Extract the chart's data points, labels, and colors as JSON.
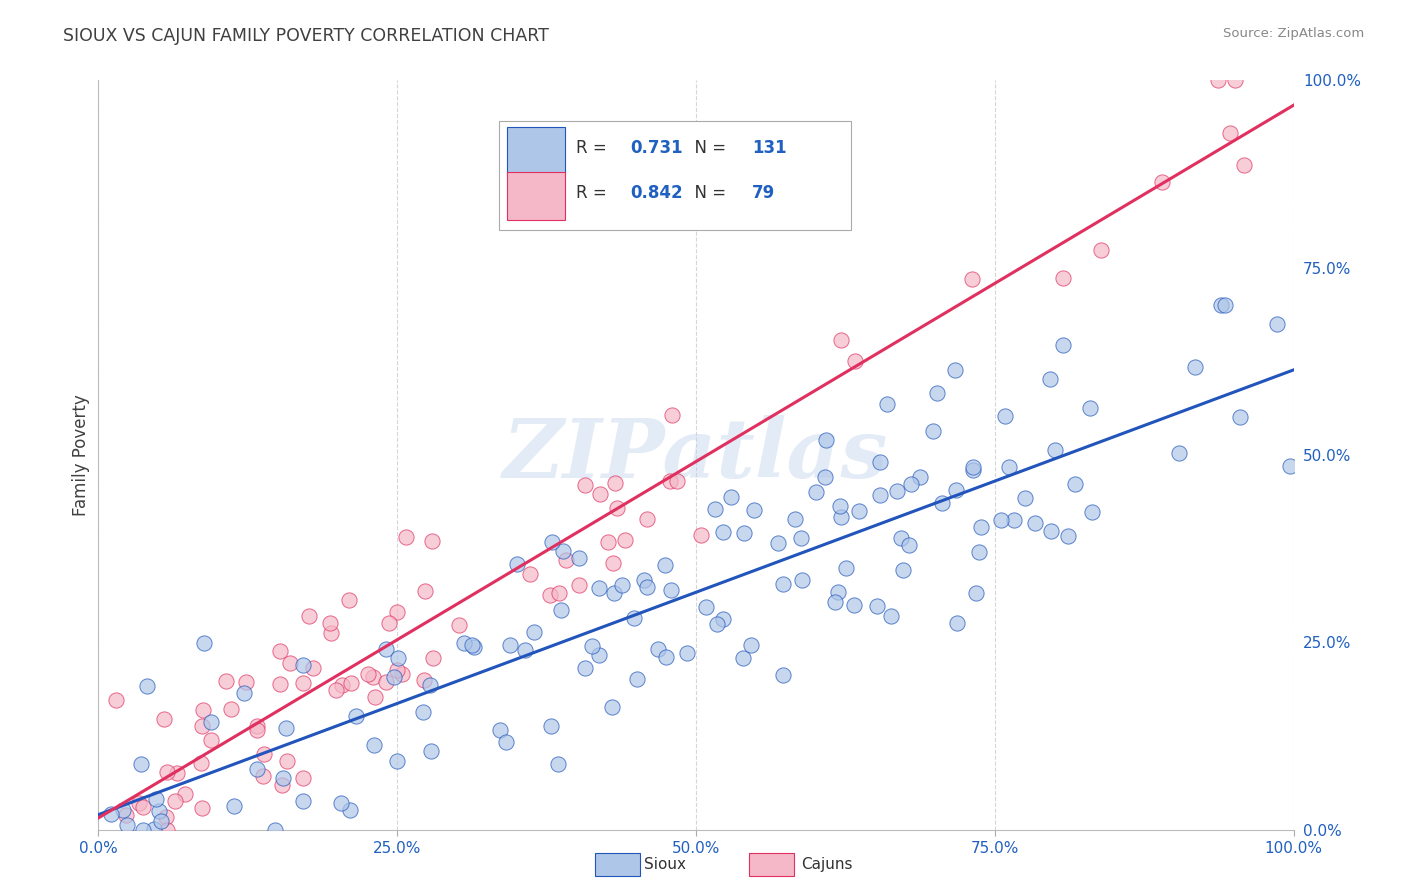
{
  "title": "SIOUX VS CAJUN FAMILY POVERTY CORRELATION CHART",
  "source": "Source: ZipAtlas.com",
  "ylabel": "Family Poverty",
  "sioux_R": 0.731,
  "sioux_N": 131,
  "cajun_R": 0.842,
  "cajun_N": 79,
  "sioux_color": "#aec6e8",
  "cajun_color": "#f5b8c8",
  "sioux_line_color": "#2255bb",
  "cajun_line_color": "#e03060",
  "background_color": "#ffffff",
  "grid_color": "#cccccc",
  "title_color": "#404040",
  "legend_text_color": "#2060c0",
  "watermark": "ZIPatlas",
  "tick_label_color": "#2060c0"
}
